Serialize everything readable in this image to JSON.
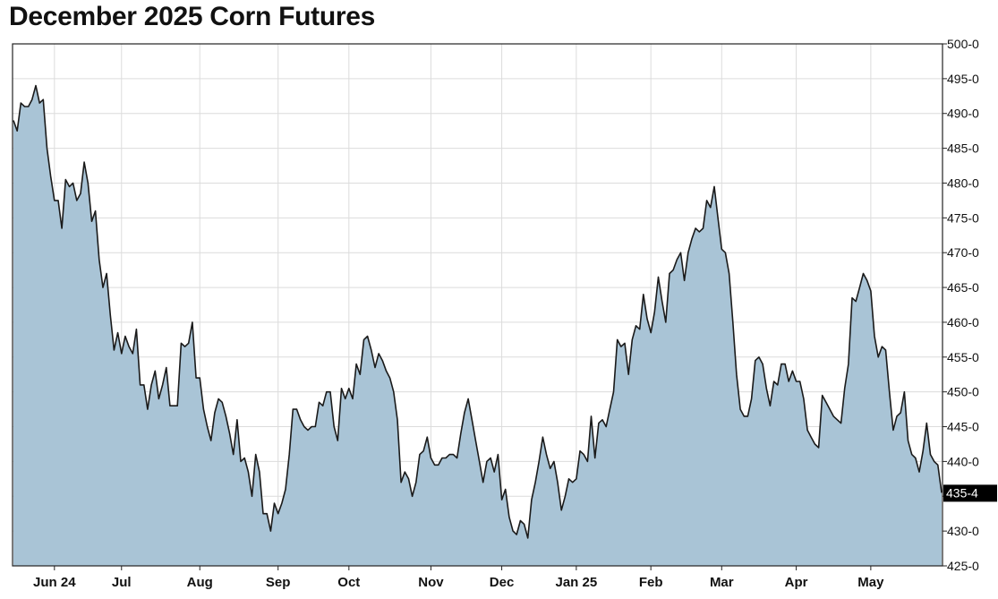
{
  "chart_data": {
    "type": "area",
    "title": "December 2025 Corn Futures",
    "xlabel": "",
    "ylabel": "",
    "ylim": [
      425,
      500
    ],
    "y_tick_labels": [
      "500-0",
      "495-0",
      "490-0",
      "485-0",
      "480-0",
      "475-0",
      "470-0",
      "465-0",
      "460-0",
      "455-0",
      "450-0",
      "445-0",
      "440-0",
      "435-0",
      "430-0",
      "425-0"
    ],
    "x_tick_labels": [
      "Jun 24",
      "Jul",
      "Aug",
      "Sep",
      "Oct",
      "Nov",
      "Dec",
      "Jan 25",
      "Feb",
      "Mar",
      "Apr",
      "May"
    ],
    "x_tick_positions": [
      11,
      29,
      50,
      71,
      90,
      112,
      131,
      151,
      171,
      190,
      210,
      230
    ],
    "last_value_label": "435-4",
    "grid": true,
    "fill_color": "#a9c4d6",
    "line_color": "#1a1a1a",
    "series": [
      {
        "values": [
          489.0,
          487.5,
          491.5,
          491.0,
          491.0,
          492.0,
          494.0,
          491.5,
          492.0,
          485.0,
          481.0,
          477.5,
          477.5,
          473.5,
          480.5,
          479.5,
          480.0,
          477.5,
          478.5,
          483.0,
          480.0,
          474.5,
          476.0,
          469.0,
          465.0,
          467.0,
          461.0,
          456.0,
          458.5,
          455.5,
          458.0,
          456.5,
          455.5,
          459.0,
          451.0,
          451.0,
          447.5,
          451.0,
          453.0,
          449.0,
          451.0,
          453.5,
          448.0,
          448.0,
          448.0,
          457.0,
          456.5,
          457.0,
          460.0,
          452.0,
          452.0,
          447.5,
          445.0,
          443.0,
          447.0,
          449.0,
          448.5,
          446.5,
          444.0,
          441.0,
          446.0,
          440.0,
          440.5,
          438.5,
          435.0,
          441.0,
          438.5,
          432.5,
          432.5,
          430.0,
          434.0,
          432.5,
          434.0,
          436.0,
          441.0,
          447.5,
          447.5,
          446.0,
          445.0,
          444.5,
          445.0,
          445.0,
          448.5,
          448.0,
          450.0,
          450.0,
          445.0,
          443.0,
          450.5,
          449.0,
          450.5,
          449.0,
          454.0,
          452.5,
          457.5,
          458.0,
          456.0,
          453.5,
          455.5,
          454.5,
          453.0,
          452.0,
          450.0,
          446.0,
          437.0,
          438.5,
          437.5,
          435.0,
          437.0,
          441.0,
          441.5,
          443.5,
          440.5,
          439.5,
          439.5,
          440.5,
          440.5,
          441.0,
          441.0,
          440.5,
          444.0,
          447.0,
          449.0,
          446.0,
          443.0,
          440.0,
          437.0,
          440.0,
          440.5,
          438.5,
          441.0,
          434.5,
          436.0,
          432.0,
          430.0,
          429.5,
          431.5,
          431.0,
          429.0,
          434.5,
          437.0,
          440.0,
          443.5,
          441.0,
          439.0,
          440.0,
          437.0,
          433.0,
          435.0,
          437.5,
          437.0,
          437.5,
          441.5,
          441.0,
          440.0,
          446.5,
          440.5,
          445.5,
          446.0,
          445.0,
          447.5,
          450.0,
          457.5,
          456.5,
          457.0,
          452.5,
          457.5,
          459.5,
          459.0,
          464.0,
          460.5,
          458.5,
          461.5,
          466.5,
          463.0,
          460.0,
          467.0,
          467.5,
          469.0,
          470.0,
          466.0,
          470.0,
          472.0,
          473.5,
          473.0,
          473.5,
          477.5,
          476.5,
          479.5,
          475.0,
          470.5,
          470.0,
          467.0,
          460.0,
          452.5,
          447.5,
          446.5,
          446.5,
          449.0,
          454.5,
          455.0,
          454.0,
          450.5,
          448.0,
          451.5,
          451.0,
          454.0,
          454.0,
          451.5,
          453.0,
          451.5,
          451.5,
          449.0,
          444.5,
          443.5,
          442.5,
          442.0,
          449.5,
          448.5,
          447.5,
          446.5,
          446.0,
          445.5,
          450.5,
          454.0,
          463.5,
          463.0,
          465.0,
          467.0,
          466.0,
          464.5,
          458.0,
          455.0,
          456.5,
          456.0,
          450.0,
          444.5,
          446.5,
          447.0,
          450.0,
          443.0,
          441.0,
          440.5,
          438.5,
          441.5,
          445.5,
          441.0,
          440.0,
          439.5,
          435.5
        ]
      }
    ]
  }
}
